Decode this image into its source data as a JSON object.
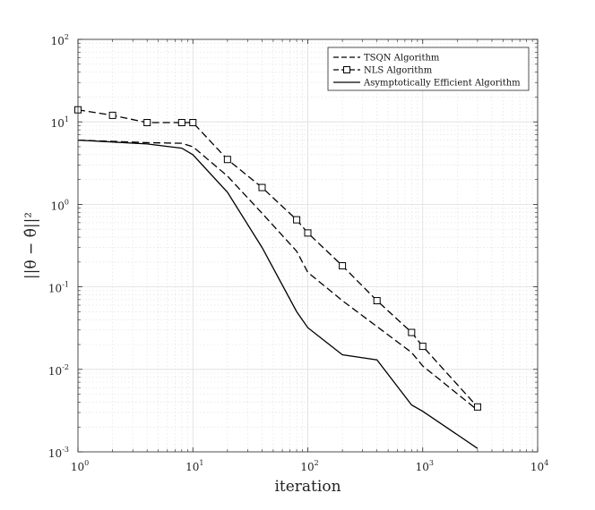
{
  "chart_data": {
    "type": "line",
    "title": "",
    "xlabel": "iteration",
    "ylabel": "||θ − θ̂||²",
    "xscale": "log",
    "yscale": "log",
    "xlim": [
      1,
      10000
    ],
    "ylim": [
      0.001,
      100
    ],
    "grid": true,
    "legend_position": "top-right",
    "x_ticks": [
      {
        "value": 1,
        "base": "10",
        "exp": "0"
      },
      {
        "value": 10,
        "base": "10",
        "exp": "1"
      },
      {
        "value": 100,
        "base": "10",
        "exp": "2"
      },
      {
        "value": 1000,
        "base": "10",
        "exp": "3"
      },
      {
        "value": 10000,
        "base": "10",
        "exp": "4"
      }
    ],
    "y_ticks": [
      {
        "value": 0.001,
        "base": "10",
        "exp": "-3"
      },
      {
        "value": 0.01,
        "base": "10",
        "exp": "-2"
      },
      {
        "value": 0.1,
        "base": "10",
        "exp": "-1"
      },
      {
        "value": 1,
        "base": "10",
        "exp": "0"
      },
      {
        "value": 10,
        "base": "10",
        "exp": "1"
      },
      {
        "value": 100,
        "base": "10",
        "exp": "2"
      }
    ],
    "series": [
      {
        "name": "TSQN Algorithm",
        "style": "dashed",
        "marker": "none",
        "color": "#000000",
        "x": [
          1,
          2,
          4,
          8,
          10,
          20,
          40,
          80,
          100,
          200,
          400,
          800,
          1000,
          3000
        ],
        "y": [
          6.0,
          5.8,
          5.6,
          5.5,
          5.0,
          2.2,
          0.78,
          0.27,
          0.15,
          0.068,
          0.033,
          0.016,
          0.011,
          0.0032
        ]
      },
      {
        "name": "NLS Algorithm",
        "style": "dashed",
        "marker": "square",
        "color": "#000000",
        "x": [
          1,
          2,
          4,
          8,
          10,
          20,
          40,
          80,
          100,
          200,
          400,
          800,
          1000,
          3000
        ],
        "y": [
          14.0,
          12.0,
          9.8,
          9.8,
          9.8,
          3.5,
          1.6,
          0.65,
          0.45,
          0.18,
          0.068,
          0.028,
          0.019,
          0.0035
        ]
      },
      {
        "name": "Asymptotically Efficient Algorithm",
        "style": "solid",
        "marker": "none",
        "color": "#000000",
        "x": [
          1,
          2,
          4,
          8,
          10,
          20,
          40,
          80,
          100,
          200,
          400,
          800,
          1000,
          3000
        ],
        "y": [
          6.0,
          5.7,
          5.4,
          4.8,
          4.0,
          1.4,
          0.3,
          0.05,
          0.032,
          0.015,
          0.013,
          0.0037,
          0.0031,
          0.0011
        ]
      }
    ]
  }
}
